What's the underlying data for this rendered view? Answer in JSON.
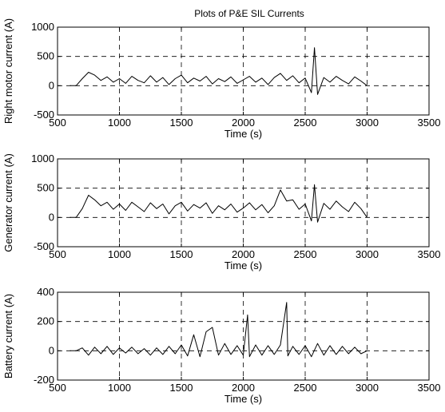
{
  "figure_title": "Plots of P&E SIL Currents",
  "chart_data": [
    {
      "type": "line",
      "xlabel": "Time (s)",
      "ylabel": "Right motor current (A)",
      "xlim": [
        500,
        3500
      ],
      "ylim": [
        -500,
        1000
      ],
      "xticks": [
        500,
        1000,
        1500,
        2000,
        2500,
        3000,
        3500
      ],
      "yticks": [
        -500,
        0,
        500,
        1000
      ],
      "grid": true,
      "series": [
        {
          "color": "#000000",
          "x": [
            600,
            650,
            700,
            750,
            800,
            850,
            900,
            950,
            1000,
            1050,
            1100,
            1150,
            1200,
            1250,
            1300,
            1350,
            1400,
            1450,
            1500,
            1550,
            1600,
            1650,
            1700,
            1750,
            1800,
            1850,
            1900,
            1950,
            2000,
            2050,
            2100,
            2150,
            2200,
            2250,
            2300,
            2350,
            2400,
            2450,
            2500,
            2550,
            2575,
            2600,
            2650,
            2700,
            2750,
            2800,
            2850,
            2900,
            2950,
            3000
          ],
          "y": [
            0,
            0,
            120,
            230,
            180,
            90,
            150,
            60,
            120,
            40,
            160,
            90,
            50,
            170,
            60,
            140,
            20,
            120,
            180,
            50,
            130,
            80,
            160,
            30,
            120,
            70,
            150,
            40,
            100,
            160,
            60,
            130,
            20,
            140,
            210,
            90,
            170,
            50,
            130,
            -120,
            650,
            -150,
            140,
            60,
            160,
            90,
            30,
            150,
            80,
            0
          ]
        }
      ]
    },
    {
      "type": "line",
      "xlabel": "Time (s)",
      "ylabel": "Generator current (A)",
      "xlim": [
        500,
        3500
      ],
      "ylim": [
        -500,
        1000
      ],
      "xticks": [
        500,
        1000,
        1500,
        2000,
        2500,
        3000,
        3500
      ],
      "yticks": [
        -500,
        0,
        500,
        1000
      ],
      "grid": true,
      "series": [
        {
          "color": "#000000",
          "x": [
            600,
            650,
            700,
            750,
            800,
            850,
            900,
            950,
            1000,
            1050,
            1100,
            1150,
            1200,
            1250,
            1300,
            1350,
            1400,
            1450,
            1500,
            1550,
            1600,
            1650,
            1700,
            1750,
            1800,
            1850,
            1900,
            1950,
            2000,
            2050,
            2100,
            2150,
            2200,
            2250,
            2300,
            2350,
            2400,
            2450,
            2500,
            2550,
            2575,
            2600,
            2650,
            2700,
            2750,
            2800,
            2850,
            2900,
            2950,
            3000
          ],
          "y": [
            0,
            0,
            150,
            380,
            300,
            200,
            260,
            140,
            230,
            120,
            260,
            180,
            100,
            250,
            150,
            230,
            60,
            200,
            260,
            110,
            220,
            160,
            250,
            70,
            200,
            130,
            230,
            90,
            160,
            250,
            130,
            220,
            80,
            200,
            470,
            280,
            300,
            140,
            230,
            -60,
            560,
            -80,
            240,
            140,
            280,
            180,
            100,
            260,
            150,
            0
          ]
        }
      ]
    },
    {
      "type": "line",
      "xlabel": "Time (s)",
      "ylabel": "Battery current (A)",
      "xlim": [
        500,
        3500
      ],
      "ylim": [
        -200,
        400
      ],
      "xticks": [
        500,
        1000,
        1500,
        2000,
        2500,
        3000,
        3500
      ],
      "yticks": [
        -200,
        0,
        200,
        400
      ],
      "grid": true,
      "series": [
        {
          "color": "#000000",
          "x": [
            600,
            650,
            700,
            750,
            800,
            850,
            900,
            950,
            1000,
            1050,
            1100,
            1150,
            1200,
            1250,
            1300,
            1350,
            1400,
            1450,
            1500,
            1550,
            1600,
            1650,
            1700,
            1750,
            1800,
            1850,
            1900,
            1950,
            2000,
            2035,
            2050,
            2100,
            2150,
            2200,
            2250,
            2300,
            2350,
            2360,
            2400,
            2450,
            2500,
            2550,
            2600,
            2650,
            2700,
            2750,
            2800,
            2850,
            2900,
            2950,
            3000
          ],
          "y": [
            0,
            0,
            20,
            -30,
            25,
            -20,
            30,
            -25,
            20,
            -15,
            25,
            -20,
            15,
            -30,
            20,
            -25,
            30,
            -20,
            40,
            -35,
            110,
            -40,
            130,
            160,
            -30,
            50,
            -25,
            35,
            -30,
            245,
            -40,
            40,
            -30,
            35,
            -25,
            40,
            330,
            -35,
            30,
            -25,
            35,
            -40,
            50,
            -30,
            35,
            -25,
            30,
            -20,
            25,
            -20,
            0
          ]
        }
      ]
    }
  ]
}
